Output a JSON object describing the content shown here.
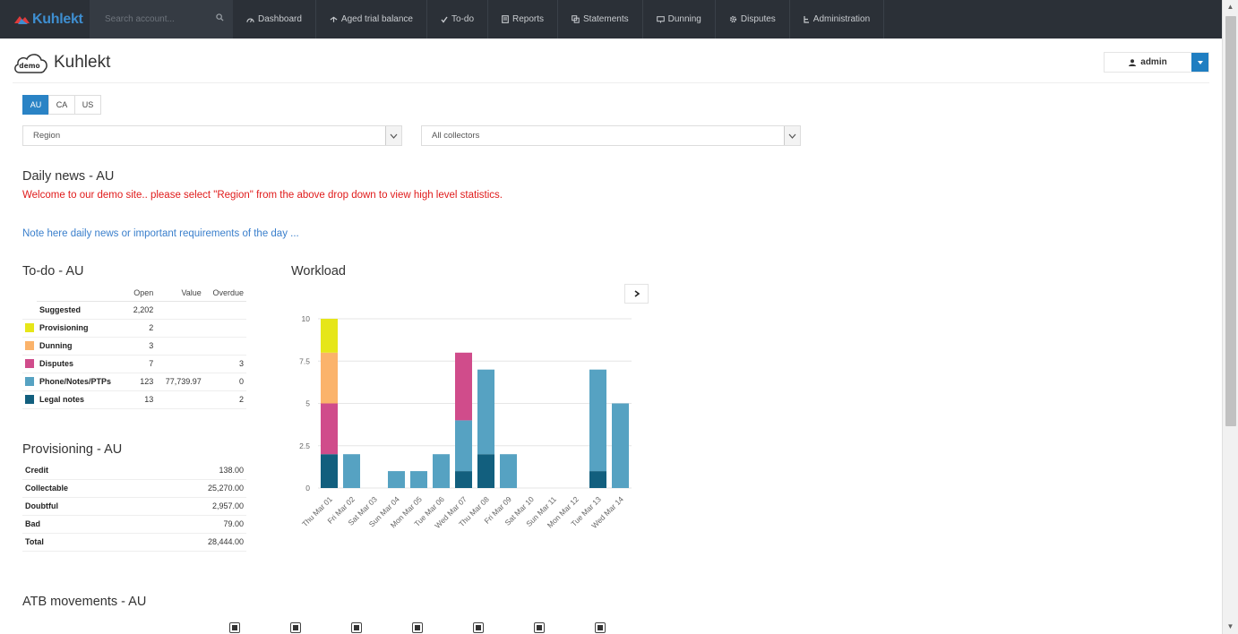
{
  "brand": {
    "name": "Kuhlekt"
  },
  "search": {
    "placeholder": "Search account..."
  },
  "nav": [
    {
      "label": "Dashboard",
      "icon": "dashboard-icon"
    },
    {
      "label": "Aged trial balance",
      "icon": "aged-trial-balance-icon"
    },
    {
      "label": "To-do",
      "icon": "check-icon"
    },
    {
      "label": "Reports",
      "icon": "reports-icon"
    },
    {
      "label": "Statements",
      "icon": "statements-icon"
    },
    {
      "label": "Dunning",
      "icon": "dunning-icon"
    },
    {
      "label": "Disputes",
      "icon": "gear-icon"
    },
    {
      "label": "Administration",
      "icon": "administration-icon"
    }
  ],
  "header": {
    "title": "Kuhlekt",
    "logo_badge": "demo",
    "user": "admin"
  },
  "countries": [
    {
      "label": "AU",
      "active": true
    },
    {
      "label": "CA",
      "active": false
    },
    {
      "label": "US",
      "active": false
    }
  ],
  "filters": {
    "region": "Region",
    "collectors": "All collectors"
  },
  "news": {
    "heading": "Daily news - AU",
    "welcome": "Welcome to our demo site..  please select \"Region\" from the above drop down to view high level statistics.",
    "note": "Note here daily news or important requirements of the day ..."
  },
  "todo": {
    "heading": "To-do - AU",
    "columns": [
      "Open",
      "Value",
      "Overdue"
    ],
    "rows": [
      {
        "label": "Suggested",
        "color": "",
        "open": "2,202",
        "value": "",
        "overdue": ""
      },
      {
        "label": "Provisioning",
        "color": "#e6e619",
        "open": "2",
        "value": "",
        "overdue": ""
      },
      {
        "label": "Dunning",
        "color": "#fbb36b",
        "open": "3",
        "value": "",
        "overdue": ""
      },
      {
        "label": "Disputes",
        "color": "#d04c8b",
        "open": "7",
        "value": "",
        "overdue": "3"
      },
      {
        "label": "Phone/Notes/PTPs",
        "color": "#56a2c2",
        "open": "123",
        "value": "77,739.97",
        "overdue": "0"
      },
      {
        "label": "Legal notes",
        "color": "#125f7e",
        "open": "13",
        "value": "",
        "overdue": "2"
      }
    ]
  },
  "provisioning": {
    "heading": "Provisioning - AU",
    "rows": [
      {
        "label": "Credit",
        "value": "138.00"
      },
      {
        "label": "Collectable",
        "value": "25,270.00"
      },
      {
        "label": "Doubtful",
        "value": "2,957.00"
      },
      {
        "label": "Bad",
        "value": "79.00"
      },
      {
        "label": "Total",
        "value": "28,444.00"
      }
    ]
  },
  "workload": {
    "heading": "Workload"
  },
  "atb": {
    "heading": "ATB movements - AU"
  },
  "chart_data": {
    "type": "bar",
    "stacked": true,
    "title": "Workload",
    "categories": [
      "Thu Mar 01",
      "Fri Mar 02",
      "Sat Mar 03",
      "Sun Mar 04",
      "Mon Mar 05",
      "Tue Mar 06",
      "Wed Mar 07",
      "Thu Mar 08",
      "Fri Mar 09",
      "Sat Mar 10",
      "Sun Mar 11",
      "Mon Mar 12",
      "Tue Mar 13",
      "Wed Mar 14"
    ],
    "series": [
      {
        "name": "Legal notes",
        "color": "#125f7e",
        "values": [
          2,
          0,
          0,
          0,
          0,
          0,
          1,
          2,
          0,
          0,
          0,
          0,
          1,
          0
        ]
      },
      {
        "name": "Phone/Notes/PTPs",
        "color": "#56a2c2",
        "values": [
          0,
          2,
          0,
          1,
          1,
          2,
          3,
          5,
          2,
          0,
          0,
          0,
          6,
          5
        ]
      },
      {
        "name": "Disputes",
        "color": "#d04c8b",
        "values": [
          3,
          0,
          0,
          0,
          0,
          0,
          4,
          0,
          0,
          0,
          0,
          0,
          0,
          0
        ]
      },
      {
        "name": "Dunning",
        "color": "#fbb36b",
        "values": [
          3,
          0,
          0,
          0,
          0,
          0,
          0,
          0,
          0,
          0,
          0,
          0,
          0,
          0
        ]
      },
      {
        "name": "Provisioning",
        "color": "#e6e619",
        "values": [
          2,
          0,
          0,
          0,
          0,
          0,
          0,
          0,
          0,
          0,
          0,
          0,
          0,
          0
        ]
      }
    ],
    "yticks": [
      "0",
      "2.5",
      "5",
      "7.5",
      "10"
    ],
    "ylim": [
      0,
      10
    ],
    "grid": true
  }
}
